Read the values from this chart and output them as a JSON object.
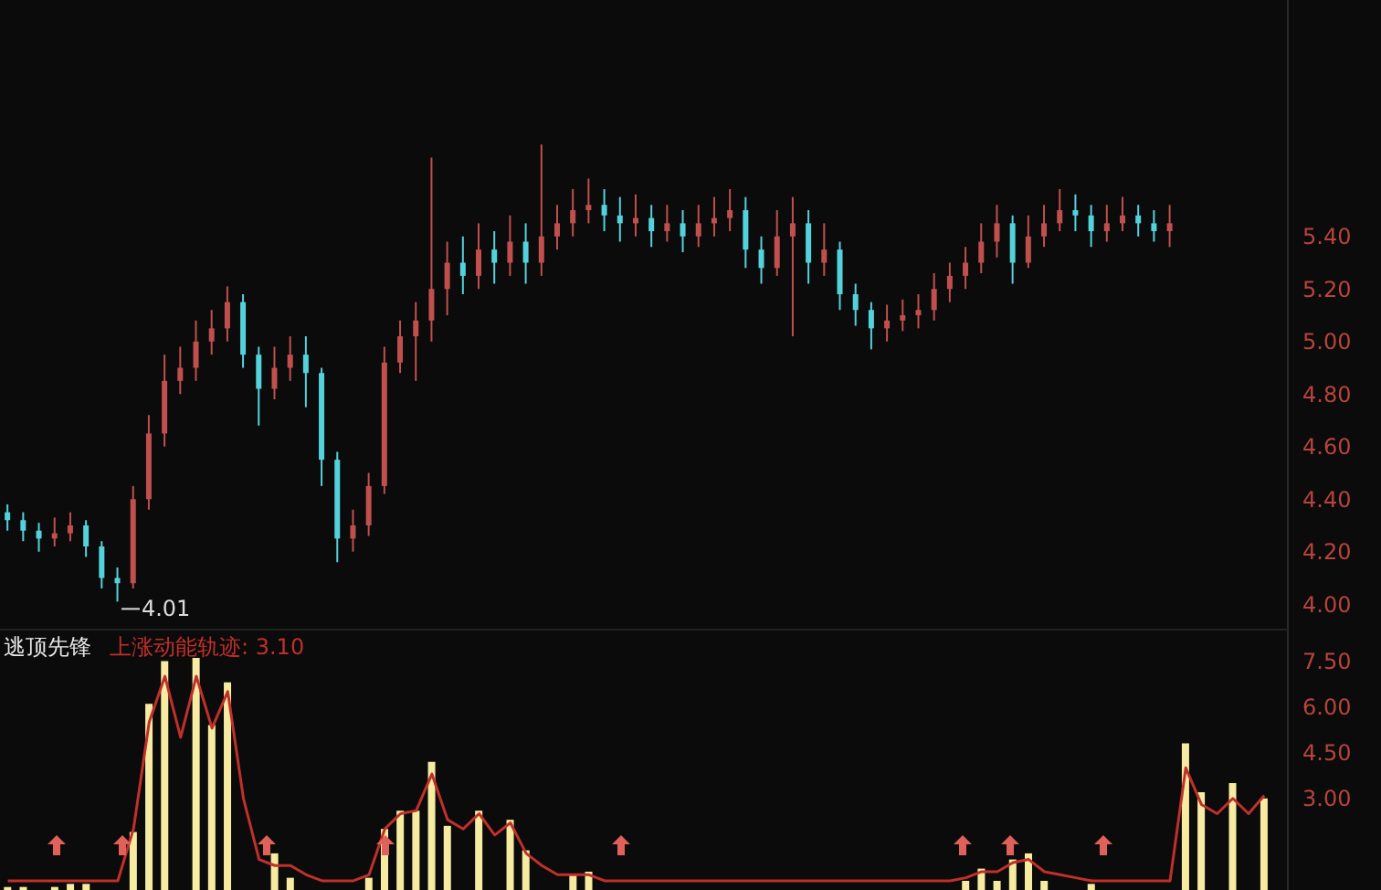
{
  "chart_data": [
    {
      "type": "candlestick",
      "categories": [
        null,
        null,
        null,
        null,
        null,
        null,
        null,
        null,
        null,
        null,
        null,
        null,
        null,
        null,
        null,
        null,
        null,
        null,
        null,
        null,
        null,
        null,
        null,
        null,
        null,
        null,
        null,
        null,
        null,
        null,
        null,
        null,
        null,
        null,
        null,
        null,
        null,
        null,
        null,
        null,
        null,
        null,
        null,
        null,
        null,
        null,
        null,
        null,
        null,
        null,
        null,
        null,
        null,
        null,
        null,
        null,
        null,
        null,
        null,
        null,
        null,
        null,
        null,
        null,
        null,
        null,
        null,
        null,
        null,
        null,
        null,
        null,
        null,
        null,
        null,
        null,
        null,
        null,
        null,
        null,
        null,
        null
      ],
      "ohlc": [
        [
          4.35,
          4.38,
          4.28,
          4.32
        ],
        [
          4.32,
          4.35,
          4.24,
          4.28
        ],
        [
          4.28,
          4.31,
          4.2,
          4.25
        ],
        [
          4.25,
          4.33,
          4.22,
          4.27
        ],
        [
          4.27,
          4.35,
          4.24,
          4.3
        ],
        [
          4.3,
          4.32,
          4.18,
          4.22
        ],
        [
          4.22,
          4.24,
          4.06,
          4.1
        ],
        [
          4.1,
          4.14,
          4.01,
          4.08
        ],
        [
          4.08,
          4.45,
          4.06,
          4.4
        ],
        [
          4.4,
          4.72,
          4.36,
          4.65
        ],
        [
          4.65,
          4.95,
          4.6,
          4.85
        ],
        [
          4.85,
          4.98,
          4.8,
          4.9
        ],
        [
          4.9,
          5.08,
          4.85,
          5.0
        ],
        [
          5.0,
          5.12,
          4.95,
          5.05
        ],
        [
          5.05,
          5.21,
          5.0,
          5.15
        ],
        [
          5.15,
          5.18,
          4.9,
          4.95
        ],
        [
          4.95,
          4.98,
          4.68,
          4.82
        ],
        [
          4.82,
          4.98,
          4.78,
          4.9
        ],
        [
          4.9,
          5.02,
          4.85,
          4.95
        ],
        [
          4.95,
          5.02,
          4.75,
          4.88
        ],
        [
          4.88,
          4.9,
          4.45,
          4.55
        ],
        [
          4.55,
          4.58,
          4.16,
          4.25
        ],
        [
          4.25,
          4.36,
          4.2,
          4.3
        ],
        [
          4.3,
          4.5,
          4.26,
          4.45
        ],
        [
          4.45,
          4.98,
          4.42,
          4.92
        ],
        [
          4.92,
          5.08,
          4.88,
          5.02
        ],
        [
          5.02,
          5.15,
          4.85,
          5.08
        ],
        [
          5.08,
          5.7,
          5.0,
          5.2
        ],
        [
          5.2,
          5.38,
          5.1,
          5.3
        ],
        [
          5.3,
          5.4,
          5.18,
          5.25
        ],
        [
          5.25,
          5.45,
          5.2,
          5.35
        ],
        [
          5.35,
          5.42,
          5.22,
          5.3
        ],
        [
          5.3,
          5.48,
          5.25,
          5.38
        ],
        [
          5.38,
          5.45,
          5.22,
          5.3
        ],
        [
          5.3,
          5.75,
          5.25,
          5.4
        ],
        [
          5.4,
          5.52,
          5.35,
          5.45
        ],
        [
          5.45,
          5.58,
          5.4,
          5.5
        ],
        [
          5.5,
          5.62,
          5.45,
          5.52
        ],
        [
          5.52,
          5.58,
          5.42,
          5.48
        ],
        [
          5.48,
          5.55,
          5.38,
          5.45
        ],
        [
          5.45,
          5.56,
          5.4,
          5.47
        ],
        [
          5.47,
          5.52,
          5.36,
          5.42
        ],
        [
          5.42,
          5.52,
          5.38,
          5.45
        ],
        [
          5.45,
          5.5,
          5.34,
          5.4
        ],
        [
          5.4,
          5.52,
          5.36,
          5.45
        ],
        [
          5.45,
          5.55,
          5.4,
          5.47
        ],
        [
          5.47,
          5.58,
          5.42,
          5.5
        ],
        [
          5.5,
          5.55,
          5.28,
          5.35
        ],
        [
          5.35,
          5.4,
          5.22,
          5.28
        ],
        [
          5.28,
          5.5,
          5.25,
          5.4
        ],
        [
          5.4,
          5.55,
          5.02,
          5.45
        ],
        [
          5.45,
          5.5,
          5.22,
          5.3
        ],
        [
          5.3,
          5.45,
          5.25,
          5.35
        ],
        [
          5.35,
          5.38,
          5.12,
          5.18
        ],
        [
          5.18,
          5.22,
          5.06,
          5.12
        ],
        [
          5.12,
          5.15,
          4.97,
          5.05
        ],
        [
          5.05,
          5.14,
          5.0,
          5.08
        ],
        [
          5.08,
          5.16,
          5.04,
          5.1
        ],
        [
          5.1,
          5.18,
          5.05,
          5.12
        ],
        [
          5.12,
          5.26,
          5.08,
          5.2
        ],
        [
          5.2,
          5.3,
          5.15,
          5.25
        ],
        [
          5.25,
          5.36,
          5.2,
          5.3
        ],
        [
          5.3,
          5.45,
          5.26,
          5.38
        ],
        [
          5.38,
          5.52,
          5.32,
          5.45
        ],
        [
          5.45,
          5.48,
          5.22,
          5.3
        ],
        [
          5.3,
          5.48,
          5.28,
          5.4
        ],
        [
          5.4,
          5.52,
          5.36,
          5.45
        ],
        [
          5.45,
          5.58,
          5.42,
          5.5
        ],
        [
          5.5,
          5.56,
          5.42,
          5.48
        ],
        [
          5.48,
          5.52,
          5.36,
          5.42
        ],
        [
          5.42,
          5.52,
          5.38,
          5.45
        ],
        [
          5.45,
          5.55,
          5.42,
          5.48
        ],
        [
          5.48,
          5.52,
          5.4,
          5.45
        ],
        [
          5.45,
          5.5,
          5.38,
          5.42
        ],
        [
          5.42,
          5.52,
          5.36,
          5.45
        ],
        null,
        null,
        null,
        null,
        null,
        null,
        null
      ],
      "colors": [
        "#54d2dc",
        "#54d2dc",
        "#54d2dc",
        "#c0504d",
        "#c0504d",
        "#54d2dc",
        "#54d2dc",
        "#54d2dc",
        "#c0504d",
        "#c0504d",
        "#c0504d",
        "#c0504d",
        "#c0504d",
        "#c0504d",
        "#c0504d",
        "#54d2dc",
        "#54d2dc",
        "#c0504d",
        "#c0504d",
        "#54d2dc",
        "#54d2dc",
        "#54d2dc",
        "#c0504d",
        "#c0504d",
        "#c0504d",
        "#c0504d",
        "#c0504d",
        "#c0504d",
        "#c0504d",
        "#54d2dc",
        "#c0504d",
        "#54d2dc",
        "#c0504d",
        "#54d2dc",
        "#c0504d",
        "#c0504d",
        "#c0504d",
        "#c0504d",
        "#54d2dc",
        "#54d2dc",
        "#c0504d",
        "#54d2dc",
        "#c0504d",
        "#54d2dc",
        "#c0504d",
        "#c0504d",
        "#c0504d",
        "#54d2dc",
        "#54d2dc",
        "#c0504d",
        "#c0504d",
        "#54d2dc",
        "#c0504d",
        "#54d2dc",
        "#54d2dc",
        "#54d2dc",
        "#c0504d",
        "#c0504d",
        "#c0504d",
        "#c0504d",
        "#c0504d",
        "#c0504d",
        "#c0504d",
        "#c0504d",
        "#54d2dc",
        "#c0504d",
        "#c0504d",
        "#c0504d",
        "#54d2dc",
        "#54d2dc",
        "#c0504d",
        "#c0504d",
        "#54d2dc",
        "#54d2dc",
        "#c0504d",
        null,
        null,
        null,
        null,
        null,
        null,
        null
      ],
      "ylim": [
        3.9,
        6.3
      ],
      "yticks": [
        {
          "value": 4,
          "label": "4.00"
        },
        {
          "value": 4.2,
          "label": "4.20"
        },
        {
          "value": 4.4,
          "label": "4.40"
        },
        {
          "value": 4.6,
          "label": "4.60"
        },
        {
          "value": 4.8,
          "label": "4.80"
        },
        {
          "value": 5,
          "label": "5.00"
        },
        {
          "value": 5.2,
          "label": "5.20"
        },
        {
          "value": 5.4,
          "label": "5.40"
        }
      ],
      "tick_labels": "y",
      "annotations": [
        "4.01"
      ]
    },
    {
      "type": "bar",
      "title": "逃顶先锋",
      "annotations": [
        "上涨动能轨迹: 3.10"
      ],
      "categories": [
        null,
        null,
        null,
        null,
        null,
        null,
        null,
        null,
        null,
        null,
        null,
        null,
        null,
        null,
        null,
        null,
        null,
        null,
        null,
        null,
        null,
        null,
        null,
        null,
        null,
        null,
        null,
        null,
        null,
        null,
        null,
        null,
        null,
        null,
        null,
        null,
        null,
        null,
        null,
        null,
        null,
        null,
        null,
        null,
        null,
        null,
        null,
        null,
        null,
        null,
        null,
        null,
        null,
        null,
        null,
        null,
        null,
        null,
        null,
        null,
        null,
        null,
        null,
        null,
        null,
        null,
        null,
        null,
        null,
        null,
        null,
        null,
        null,
        null,
        null,
        null,
        null,
        null,
        null,
        null,
        null,
        null
      ],
      "series": [
        {
          "type": "bar",
          "color": "#f6eba0",
          "values": [
            0.1,
            0.1,
            0,
            0.1,
            0.2,
            0.2,
            0,
            0,
            1.9,
            6.1,
            7.5,
            0,
            7.6,
            5.4,
            6.8,
            0,
            0,
            1.2,
            0.4,
            0,
            0,
            0,
            0,
            0.4,
            2.0,
            2.6,
            2.6,
            4.2,
            2.1,
            0,
            2.6,
            0,
            2.3,
            1.3,
            0,
            0,
            0.5,
            0.6,
            0,
            0,
            0,
            0,
            0,
            0,
            0,
            0,
            0,
            0,
            0,
            0,
            0,
            0,
            0,
            0,
            0,
            0,
            0,
            0,
            0,
            0,
            0,
            0.3,
            0.7,
            0.3,
            1.0,
            1.2,
            0.3,
            0,
            0,
            0.2,
            0,
            0,
            0,
            0,
            0,
            4.8,
            3.2,
            0,
            3.5,
            0,
            3.0,
            0
          ]
        },
        {
          "type": "line",
          "color": "#c0302a",
          "values": [
            0.3,
            0.3,
            0.3,
            0.3,
            0.3,
            0.3,
            0.3,
            0.3,
            2.0,
            5.5,
            7.0,
            5.0,
            7.0,
            5.3,
            6.5,
            3.0,
            1.0,
            0.8,
            0.8,
            0.5,
            0.3,
            0.3,
            0.3,
            0.5,
            2.0,
            2.5,
            2.6,
            3.8,
            2.3,
            2.0,
            2.5,
            1.8,
            2.2,
            1.2,
            0.8,
            0.5,
            0.5,
            0.5,
            0.3,
            0.3,
            0.3,
            0.3,
            0.3,
            0.3,
            0.3,
            0.3,
            0.3,
            0.3,
            0.3,
            0.3,
            0.3,
            0.3,
            0.3,
            0.3,
            0.3,
            0.3,
            0.3,
            0.3,
            0.3,
            0.3,
            0.3,
            0.4,
            0.6,
            0.6,
            0.9,
            1.0,
            0.6,
            0.5,
            0.4,
            0.3,
            0.3,
            0.3,
            0.3,
            0.3,
            0.3,
            4.0,
            2.8,
            2.5,
            3.0,
            2.5,
            3.1,
            null
          ]
        }
      ],
      "ylim": [
        0,
        8.5
      ],
      "yticks": [
        {
          "value": 3,
          "label": "3.00"
        },
        {
          "value": 4.5,
          "label": "4.50"
        },
        {
          "value": 6,
          "label": "6.00"
        },
        {
          "value": 7.5,
          "label": "7.50"
        }
      ],
      "tick_labels": "y"
    }
  ]
}
